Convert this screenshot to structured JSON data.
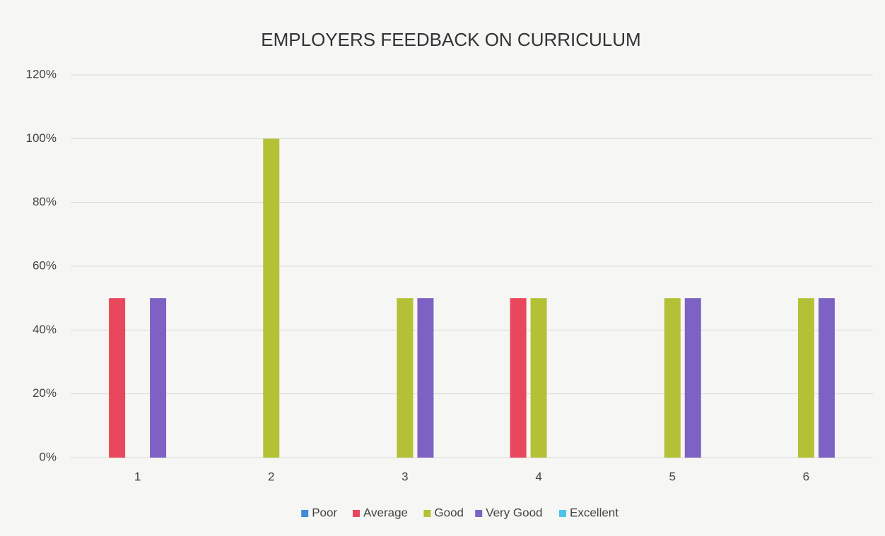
{
  "chart_data": {
    "type": "bar",
    "title": "EMPLOYERS FEEDBACK ON CURRICULUM",
    "categories": [
      "1",
      "2",
      "3",
      "4",
      "5",
      "6"
    ],
    "series": [
      {
        "name": "Poor",
        "color": "#3f8bd6",
        "values": [
          0,
          0,
          0,
          0,
          0,
          0
        ]
      },
      {
        "name": "Average",
        "color": "#e8475c",
        "values": [
          50,
          0,
          0,
          50,
          0,
          0
        ]
      },
      {
        "name": "Good",
        "color": "#b4c136",
        "values": [
          0,
          100,
          50,
          50,
          50,
          50
        ]
      },
      {
        "name": "Very Good",
        "color": "#7d62c4",
        "values": [
          50,
          0,
          50,
          0,
          50,
          50
        ]
      },
      {
        "name": "Excellent",
        "color": "#4cc3e8",
        "values": [
          0,
          0,
          0,
          0,
          0,
          0
        ]
      }
    ],
    "ylim": [
      0,
      120
    ],
    "yticks": [
      {
        "value": 0,
        "label": "0%"
      },
      {
        "value": 20,
        "label": "20%"
      },
      {
        "value": 40,
        "label": "40%"
      },
      {
        "value": 60,
        "label": "60%"
      },
      {
        "value": 80,
        "label": "80%"
      },
      {
        "value": 100,
        "label": "100%"
      },
      {
        "value": 120,
        "label": "120%"
      }
    ],
    "grid": true,
    "legend": "bottom"
  }
}
